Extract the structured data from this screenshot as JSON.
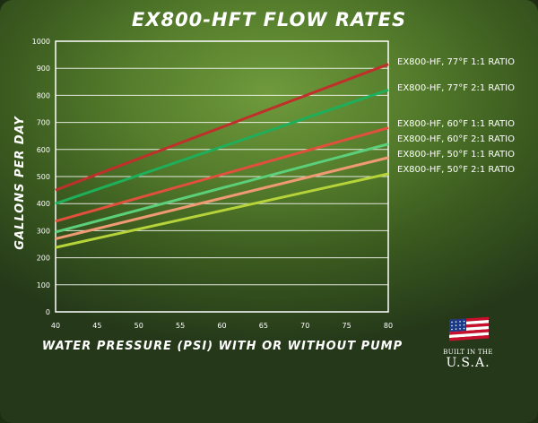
{
  "chart_data": {
    "type": "line",
    "title": "EX800-HFT FLOW RATES",
    "xlabel": "WATER PRESSURE (PSI) WITH OR WITHOUT PUMP",
    "ylabel": "GALLONS PER DAY",
    "xlim": [
      40,
      80
    ],
    "ylim": [
      0,
      1000
    ],
    "xticks": [
      40,
      45,
      50,
      55,
      60,
      65,
      70,
      75,
      80
    ],
    "yticks": [
      0,
      100,
      200,
      300,
      400,
      500,
      600,
      700,
      800,
      900,
      1000
    ],
    "grid": "horizontal",
    "legend_position": "right",
    "x": [
      40,
      80
    ],
    "series": [
      {
        "name": "EX800-HF, 77°F 1:1 RATIO",
        "values": [
          450,
          915
        ],
        "color": "#c0302a"
      },
      {
        "name": "EX800-HF, 77°F 2:1 RATIO",
        "values": [
          400,
          820
        ],
        "color": "#1fae5a"
      },
      {
        "name": "EX800-HF, 60°F 1:1 RATIO",
        "values": [
          335,
          680
        ],
        "color": "#e0503c"
      },
      {
        "name": "EX800-HF, 60°F 2:1 RATIO",
        "values": [
          295,
          620
        ],
        "color": "#5ccf7a"
      },
      {
        "name": "EX800-HF, 50°F 1:1 RATIO",
        "values": [
          270,
          570
        ],
        "color": "#f09a74"
      },
      {
        "name": "EX800-HF, 50°F 2:1 RATIO",
        "values": [
          238,
          510
        ],
        "color": "#b6d33a"
      }
    ]
  },
  "badge": {
    "top_text": "BUILT IN THE",
    "bottom_text": "U.S.A.",
    "icon": "us-flag-icon",
    "flag_colors": {
      "red": "#c8102e",
      "white": "#ffffff",
      "blue": "#1c3a8a"
    }
  }
}
